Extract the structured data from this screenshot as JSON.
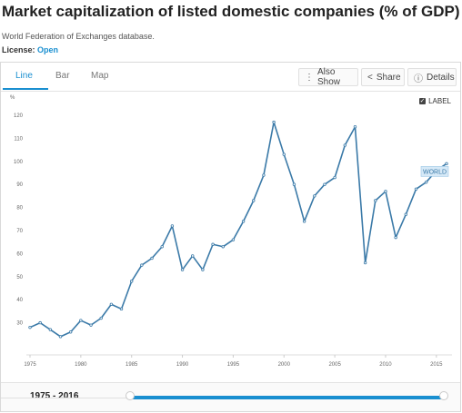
{
  "header": {
    "title": "Market capitalization of listed domestic companies (% of GDP)",
    "source": "World Federation of Exchanges database.",
    "license_label": "License:",
    "license_value": "Open"
  },
  "tabs": [
    {
      "label": "Line",
      "active": true
    },
    {
      "label": "Bar",
      "active": false
    },
    {
      "label": "Map",
      "active": false
    }
  ],
  "toolbar": {
    "also_show": "Also Show",
    "share": "Share",
    "details": "Details"
  },
  "label_toggle": {
    "text": "LABEL",
    "checked": true
  },
  "colors": {
    "accent": "#1a8fd0",
    "line": "#3b7aa8",
    "label_bg": "#d6e9f7"
  },
  "chart_data": {
    "type": "line",
    "ylabel": "%",
    "ylim": [
      20,
      120
    ],
    "yticks": [
      30,
      40,
      50,
      60,
      70,
      80,
      90,
      100,
      110,
      120
    ],
    "xlim": [
      1975,
      2016
    ],
    "xticks": [
      1975,
      1980,
      1985,
      1990,
      1995,
      2000,
      2005,
      2010,
      2015
    ],
    "grid": false,
    "series": [
      {
        "name": "WORLD",
        "x": [
          1975,
          1976,
          1977,
          1978,
          1979,
          1980,
          1981,
          1982,
          1983,
          1984,
          1985,
          1986,
          1987,
          1988,
          1989,
          1990,
          1991,
          1992,
          1993,
          1994,
          1995,
          1996,
          1997,
          1998,
          1999,
          2000,
          2001,
          2002,
          2003,
          2004,
          2005,
          2006,
          2007,
          2008,
          2009,
          2010,
          2011,
          2012,
          2013,
          2014,
          2015,
          2016
        ],
        "y": [
          28,
          30,
          27,
          24,
          26,
          31,
          29,
          32,
          38,
          36,
          48,
          55,
          58,
          63,
          72,
          53,
          59,
          53,
          64,
          63,
          66,
          74,
          83,
          94,
          117,
          103,
          90,
          74,
          85,
          90,
          93,
          107,
          115,
          56,
          83,
          87,
          67,
          77,
          88,
          91,
          96,
          99
        ]
      }
    ]
  },
  "footer": {
    "range": "1975 - 2016"
  }
}
